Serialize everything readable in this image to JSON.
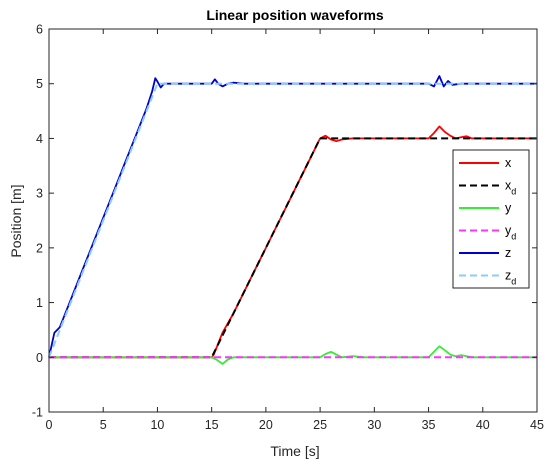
{
  "chart_data": {
    "type": "line",
    "title": "Linear position waveforms",
    "xlabel": "Time [s]",
    "ylabel": "Position [m]",
    "xlim": [
      0,
      45
    ],
    "ylim": [
      -1,
      6
    ],
    "xticks": [
      0,
      5,
      10,
      15,
      20,
      25,
      30,
      35,
      40,
      45
    ],
    "yticks": [
      -1,
      0,
      1,
      2,
      3,
      4,
      5,
      6
    ],
    "grid": false,
    "legend_position": "right",
    "series": [
      {
        "name": "x",
        "name_sub": "",
        "color": "#ff0000",
        "style": "solid",
        "x": [
          0,
          15,
          15.2,
          16,
          17,
          18,
          19,
          20,
          21,
          22,
          23,
          24,
          25,
          25.5,
          26,
          26.5,
          27,
          28,
          29,
          30,
          31,
          32,
          33,
          34,
          35,
          35.5,
          36,
          36.5,
          37,
          37.5,
          38,
          38.5,
          39,
          40,
          41,
          42,
          43,
          44,
          45
        ],
        "y": [
          0,
          0,
          0.05,
          0.45,
          0.8,
          1.2,
          1.6,
          2.0,
          2.4,
          2.8,
          3.2,
          3.6,
          4.0,
          4.05,
          3.98,
          3.95,
          3.98,
          4.0,
          4.0,
          4.0,
          4.0,
          4.0,
          4.0,
          4.0,
          4.0,
          4.1,
          4.22,
          4.12,
          4.05,
          4.0,
          4.02,
          4.04,
          4.0,
          4.0,
          4.0,
          4.0,
          4.0,
          4.0,
          4.0
        ]
      },
      {
        "name": "x",
        "name_sub": "d",
        "color": "#000000",
        "style": "dashed",
        "x": [
          0,
          15,
          25,
          45
        ],
        "y": [
          0,
          0,
          4,
          4
        ]
      },
      {
        "name": "y",
        "name_sub": "",
        "color": "#33ee33",
        "style": "solid",
        "x": [
          0,
          15,
          15.5,
          16,
          16.5,
          17,
          18,
          25,
          25.5,
          26,
          26.5,
          27,
          28,
          29,
          35,
          35.5,
          36,
          36.5,
          37,
          37.5,
          38,
          39,
          45
        ],
        "y": [
          0,
          0,
          -0.05,
          -0.12,
          -0.04,
          0,
          0,
          0,
          0.06,
          0.1,
          0.05,
          0,
          0.02,
          0,
          0,
          0.1,
          0.2,
          0.13,
          0.05,
          0.02,
          0.04,
          0,
          0
        ]
      },
      {
        "name": "y",
        "name_sub": "d",
        "color": "#ff33ff",
        "style": "dashed",
        "x": [
          0,
          45
        ],
        "y": [
          0,
          0
        ]
      },
      {
        "name": "z",
        "name_sub": "",
        "color": "#0000cc",
        "style": "solid",
        "x": [
          0,
          0.5,
          1,
          2,
          3,
          4,
          5,
          6,
          7,
          8,
          9,
          9.5,
          9.8,
          10,
          10.3,
          10.6,
          11,
          12,
          14,
          15,
          15.3,
          15.6,
          16,
          16.5,
          17,
          18,
          20,
          25,
          30,
          35,
          35.5,
          36,
          36.4,
          36.8,
          37.2,
          38,
          40,
          45
        ],
        "y": [
          0,
          0.45,
          0.55,
          1.05,
          1.55,
          2.05,
          2.55,
          3.05,
          3.55,
          4.05,
          4.55,
          4.85,
          5.1,
          5.04,
          4.93,
          5.0,
          5.0,
          5.0,
          5.0,
          5.0,
          5.08,
          5.0,
          4.95,
          5.0,
          5.02,
          5.0,
          5.0,
          5.0,
          5.0,
          5.0,
          4.95,
          5.14,
          4.95,
          5.05,
          4.98,
          5.0,
          5.0,
          5.0
        ]
      },
      {
        "name": "z",
        "name_sub": "d",
        "color": "#88ccff",
        "style": "dashed",
        "x": [
          0,
          10,
          45
        ],
        "y": [
          0,
          5,
          5
        ]
      }
    ]
  }
}
